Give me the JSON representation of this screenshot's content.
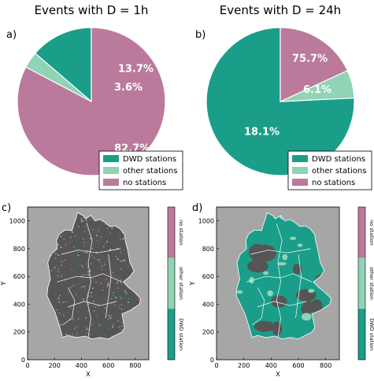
{
  "colors": {
    "dwd": "#1a9e8a",
    "other": "#8fd4b4",
    "none": "#bb7a9c",
    "map_bg": "#a6a6a6",
    "land": "#555555"
  },
  "chart_data": [
    {
      "type": "pie",
      "panel_label": "a)",
      "title": "Events with D = 1h",
      "categories": [
        "DWD stations",
        "other stations",
        "no stations"
      ],
      "values": [
        13.7,
        3.6,
        82.7
      ],
      "value_labels": [
        "13.7%",
        "3.6%",
        "82.7%"
      ],
      "legend": "lower-right"
    },
    {
      "type": "pie",
      "panel_label": "b)",
      "title": "Events with D = 24h",
      "categories": [
        "DWD stations",
        "other stations",
        "no stations"
      ],
      "values": [
        75.7,
        6.1,
        18.1
      ],
      "value_labels": [
        "75.7%",
        "6.1%",
        "18.1%"
      ],
      "legend": "lower-right"
    },
    {
      "type": "heatmap",
      "panel_label": "c)",
      "xlabel": "X",
      "ylabel": "Y",
      "xlim": [
        0,
        900
      ],
      "ylim": [
        0,
        1100
      ],
      "xticks": [
        0,
        200,
        400,
        600,
        800
      ],
      "yticks": [
        0,
        200,
        400,
        600,
        800,
        1000
      ],
      "colorbar_labels": [
        "no station",
        "other station",
        "DWD station"
      ]
    },
    {
      "type": "heatmap",
      "panel_label": "d)",
      "xlabel": "X",
      "ylabel": "Y",
      "xlim": [
        0,
        900
      ],
      "ylim": [
        0,
        1100
      ],
      "xticks": [
        0,
        200,
        400,
        600,
        800
      ],
      "yticks": [
        0,
        200,
        400,
        600,
        800,
        1000
      ],
      "colorbar_labels": [
        "no station",
        "other station",
        "DWD station"
      ]
    }
  ]
}
